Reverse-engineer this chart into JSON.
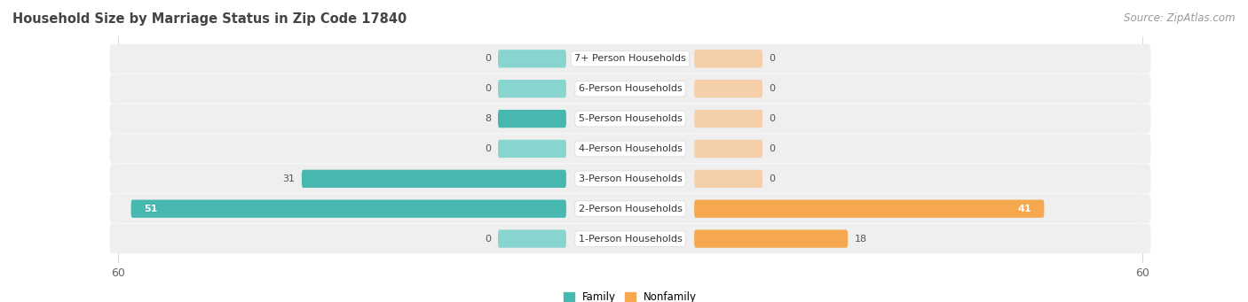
{
  "title": "Household Size by Marriage Status in Zip Code 17840",
  "source": "Source: ZipAtlas.com",
  "categories": [
    "7+ Person Households",
    "6-Person Households",
    "5-Person Households",
    "4-Person Households",
    "3-Person Households",
    "2-Person Households",
    "1-Person Households"
  ],
  "family_values": [
    0,
    0,
    8,
    0,
    31,
    51,
    0
  ],
  "nonfamily_values": [
    0,
    0,
    0,
    0,
    0,
    41,
    18
  ],
  "family_color": "#46B8B0",
  "family_color_light": "#88D4CF",
  "nonfamily_color": "#F5A84E",
  "nonfamily_color_light": "#F5CEAA",
  "bar_bg_color": "#EFEFEF",
  "row_sep_color": "#FFFFFF",
  "max_val": 60,
  "stub_val": 8,
  "label_fontsize": 8.0,
  "tick_fontsize": 9,
  "title_fontsize": 10.5,
  "source_fontsize": 8.5
}
